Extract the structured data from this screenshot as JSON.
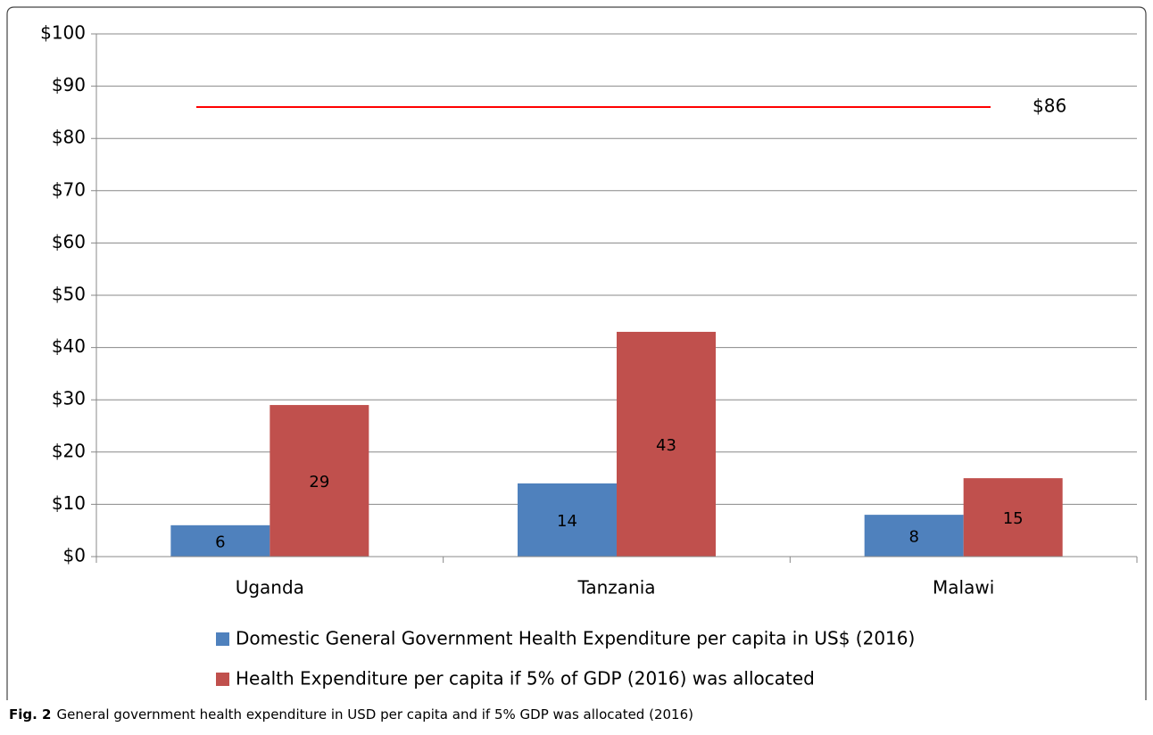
{
  "chart_data": {
    "type": "bar",
    "categories": [
      "Uganda",
      "Tanzania",
      "Malawi"
    ],
    "series": [
      {
        "name": "Domestic General Government Health Expenditure per capita in US$ (2016)",
        "color": "#4f81bd",
        "values": [
          6,
          14,
          8
        ]
      },
      {
        "name": "Health Expenditure per capita if 5% of GDP (2016) was allocated",
        "color": "#c0504d",
        "values": [
          29,
          43,
          15
        ]
      }
    ],
    "ylim": [
      0,
      100
    ],
    "yticks": [
      {
        "value": 0,
        "label": "$0"
      },
      {
        "value": 10,
        "label": "$10"
      },
      {
        "value": 20,
        "label": "$20"
      },
      {
        "value": 30,
        "label": "$30"
      },
      {
        "value": 40,
        "label": "$40"
      },
      {
        "value": 50,
        "label": "$50"
      },
      {
        "value": 60,
        "label": "$60"
      },
      {
        "value": 70,
        "label": "$70"
      },
      {
        "value": 80,
        "label": "$80"
      },
      {
        "value": 90,
        "label": "$90"
      },
      {
        "value": 100,
        "label": "$100"
      }
    ],
    "grid": true,
    "legend": "bottom",
    "reference_line": {
      "value": 86,
      "label": "$86",
      "color": "#ff0000"
    },
    "caption": {
      "label": "Fig. 2",
      "text": "General government health expenditure in USD per capita and if 5% GDP was allocated (2016)"
    }
  }
}
